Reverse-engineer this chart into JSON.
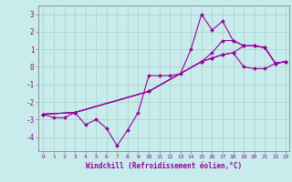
{
  "xlabel": "Windchill (Refroidissement éolien,°C)",
  "bg_color": "#c8ecec",
  "line_color": "#990099",
  "grid_color": "#aacccc",
  "spine_color": "#888888",
  "xlim": [
    -0.5,
    23.3
  ],
  "ylim": [
    -4.8,
    3.5
  ],
  "xticks": [
    0,
    1,
    2,
    3,
    4,
    5,
    6,
    7,
    8,
    9,
    10,
    11,
    12,
    13,
    14,
    15,
    16,
    17,
    18,
    19,
    20,
    21,
    22,
    23
  ],
  "yticks": [
    -4,
    -3,
    -2,
    -1,
    0,
    1,
    2,
    3
  ],
  "line1_x": [
    0,
    1,
    2,
    3,
    4,
    5,
    6,
    7,
    8,
    9,
    10,
    11,
    12,
    13,
    14,
    15,
    16,
    17,
    18,
    19,
    20,
    21,
    22,
    23
  ],
  "line1_y": [
    -2.7,
    -2.9,
    -2.9,
    -2.6,
    -3.3,
    -3.0,
    -3.5,
    -4.5,
    -3.6,
    -2.6,
    -0.5,
    -0.5,
    -0.5,
    -0.4,
    1.0,
    3.0,
    2.1,
    2.6,
    1.5,
    1.2,
    1.2,
    1.1,
    0.2,
    0.3
  ],
  "line2_x": [
    0,
    3,
    10,
    15,
    16,
    17,
    18,
    19,
    20,
    21,
    22,
    23
  ],
  "line2_y": [
    -2.7,
    -2.6,
    -1.4,
    0.3,
    0.5,
    0.7,
    0.8,
    0.0,
    -0.1,
    -0.1,
    0.2,
    0.3
  ],
  "line3_x": [
    0,
    3,
    10,
    15,
    16,
    17,
    18,
    19,
    20,
    21,
    22,
    23
  ],
  "line3_y": [
    -2.7,
    -2.6,
    -1.4,
    0.3,
    0.5,
    0.7,
    0.8,
    1.2,
    1.2,
    1.1,
    0.2,
    0.3
  ],
  "line4_x": [
    0,
    3,
    10,
    15,
    16,
    17,
    18,
    19,
    20,
    21,
    22,
    23
  ],
  "line4_y": [
    -2.7,
    -2.6,
    -1.4,
    0.3,
    0.8,
    1.5,
    1.5,
    1.2,
    1.2,
    1.1,
    0.2,
    0.3
  ]
}
